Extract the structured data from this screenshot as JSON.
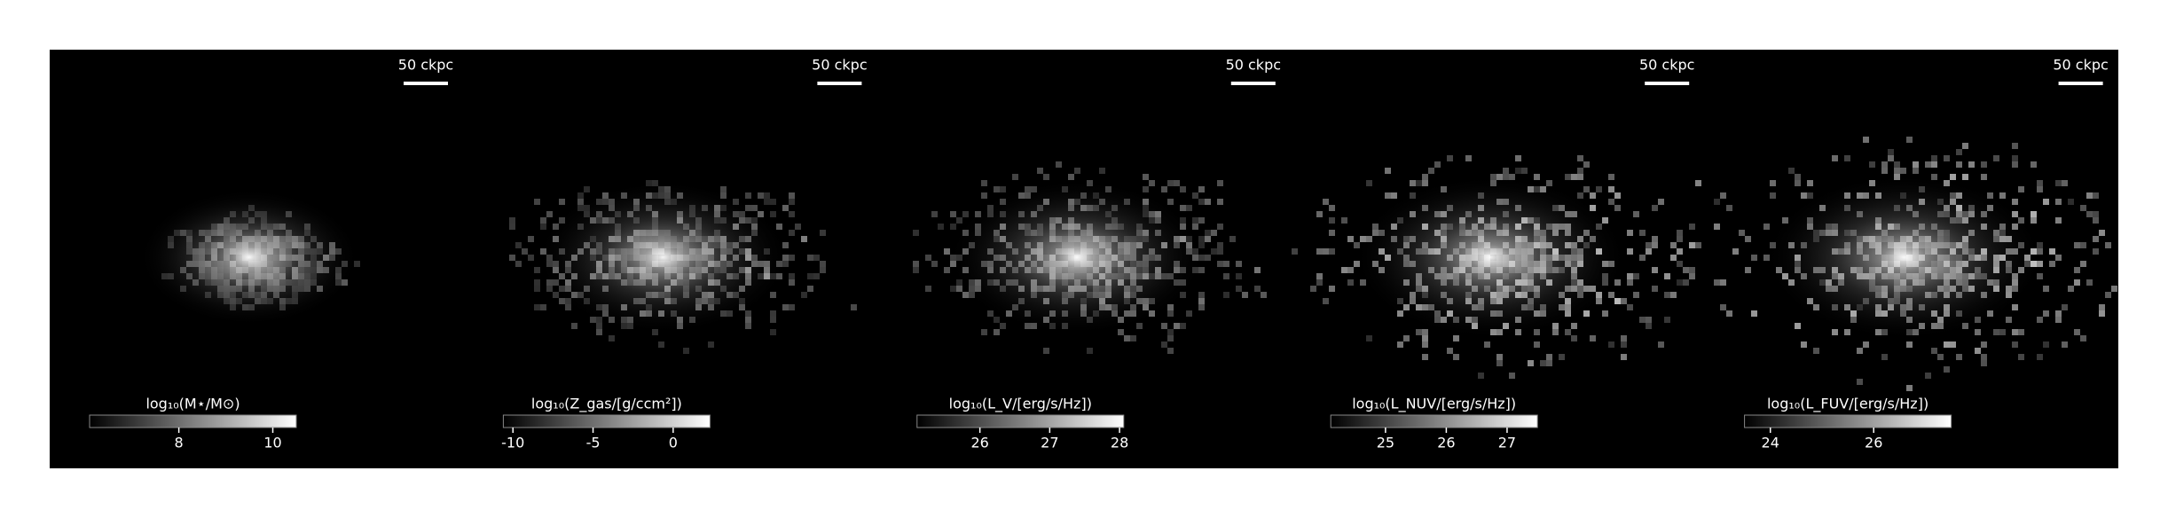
{
  "chart_data": [
    {
      "type": "image",
      "scale_bar": "50 ckpc",
      "colorbar_label": "log₁₀(M⋆/M⊙)",
      "clim": [
        6.1,
        10.5
      ],
      "cticks": [
        8,
        10
      ]
    },
    {
      "type": "image",
      "scale_bar": "50 ckpc",
      "colorbar_label": "log₁₀(Z_gas/[g/ccm²])",
      "clim": [
        -10.6,
        2.3
      ],
      "cticks": [
        -10,
        -5,
        0
      ]
    },
    {
      "type": "image",
      "scale_bar": "50 ckpc",
      "colorbar_label": "log₁₀(L_V/[erg/s/Hz])",
      "clim": [
        25.1,
        28.06
      ],
      "cticks": [
        26,
        27,
        28
      ]
    },
    {
      "type": "image",
      "scale_bar": "50 ckpc",
      "colorbar_label": "log₁₀(L_NUV/[erg/s/Hz])",
      "clim": [
        24.1,
        27.5
      ],
      "cticks": [
        25,
        26,
        27
      ]
    },
    {
      "type": "image",
      "scale_bar": "50 ckpc",
      "colorbar_label": "log₁₀(L_FUV/[erg/s/Hz])",
      "clim": [
        23.5,
        27.5
      ],
      "cticks": [
        24,
        26
      ]
    }
  ]
}
